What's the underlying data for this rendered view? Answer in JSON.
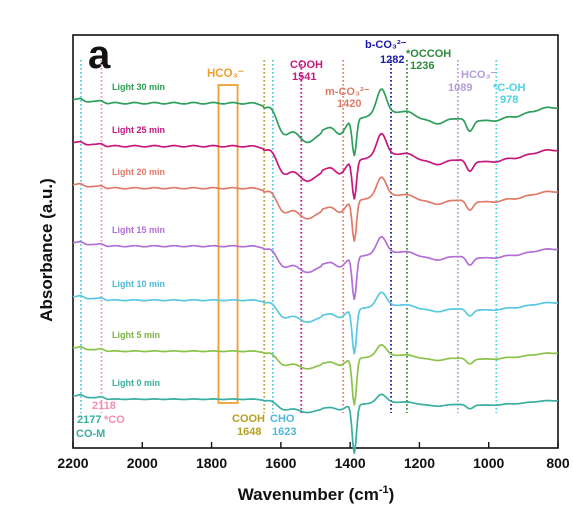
{
  "chart_data": {
    "type": "line",
    "panel_label": "a",
    "xlabel": "Wavenumber (cm",
    "xlabel_sup": "-1",
    "xlabel_end": ")",
    "ylabel": "Absorbance (a.u.)",
    "xlim": [
      2200,
      800
    ],
    "x_ticks": [
      2200,
      2000,
      1800,
      1600,
      1400,
      1200,
      1000,
      800
    ],
    "x_tick_labels": [
      "2200",
      "2000",
      "1800",
      "1600",
      "1400",
      "1200",
      "1000",
      "800"
    ],
    "series": [
      {
        "name": "Light 30 min",
        "color": "#2e9e5b",
        "label_color": "#2f9e55"
      },
      {
        "name": "Light 25 min",
        "color": "#c8187d",
        "label_color": "#c8187d"
      },
      {
        "name": "Light 20 min",
        "color": "#e07b6a",
        "label_color": "#e07b6a"
      },
      {
        "name": "Light 15 min",
        "color": "#b46fd6",
        "label_color": "#b46fd6"
      },
      {
        "name": "Light 10 min",
        "color": "#5ac8e0",
        "label_color": "#4fb8d8"
      },
      {
        "name": "Light  5 min",
        "color": "#8bc34a",
        "label_color": "#7cb342"
      },
      {
        "name": "Light  0 min",
        "color": "#3aaea0",
        "label_color": "#3aaea0"
      }
    ],
    "reference_lines": [
      {
        "x": 2177,
        "color": "#5ac8e0",
        "style": "dotted"
      },
      {
        "x": 2118,
        "color": "#f48fb1",
        "style": "dotted"
      },
      {
        "x": 1648,
        "color": "#b5a022",
        "style": "dotted"
      },
      {
        "x": 1623,
        "color": "#5ac8e0",
        "style": "dotted"
      },
      {
        "x": 1541,
        "color": "#c8187d",
        "style": "dotted"
      },
      {
        "x": 1420,
        "color": "#e07b6a",
        "style": "dotted"
      },
      {
        "x": 1282,
        "color": "#1a1aa8",
        "style": "dotted"
      },
      {
        "x": 1236,
        "color": "#2e8b3a",
        "style": "dotted"
      },
      {
        "x": 1089,
        "color": "#b39ddb",
        "style": "dotted"
      },
      {
        "x": 978,
        "color": "#4dd0e1",
        "style": "dotted"
      }
    ],
    "hco3_box": {
      "x_from": 1780,
      "x_to": 1725,
      "color": "#f0a030"
    },
    "annotations": {
      "hco3_box_label": "HCO₃⁻",
      "cooh_1541": [
        "COOH",
        "1541"
      ],
      "mco3_1420": [
        "m-CO₃²⁻",
        "1420"
      ],
      "bco3_1282": [
        "b-CO₃²⁻",
        "1282"
      ],
      "occooh_1236": [
        "*OCCOH",
        "1236"
      ],
      "hco3_1089": [
        "HCO₃⁻",
        "1089"
      ],
      "coh_978": [
        "*C-OH",
        "978"
      ],
      "com_2177": [
        "2177",
        "CO-M"
      ],
      "co_2118": [
        "2118",
        "*CO"
      ],
      "cooh_1648": [
        "COOH",
        "1648"
      ],
      "cho_1623": [
        "CHO",
        "1623"
      ]
    }
  }
}
